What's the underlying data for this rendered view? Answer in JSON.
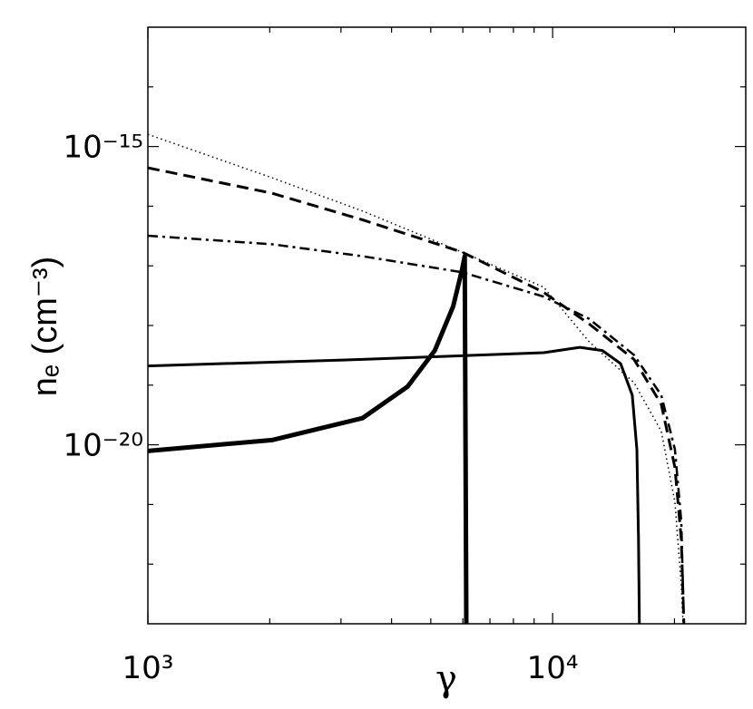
{
  "chart_data": {
    "type": "line",
    "xlabel": "γ",
    "ylabel": "nₑ (cm⁻³)",
    "xscale": "log",
    "yscale": "log",
    "xlim": [
      1000,
      30000
    ],
    "ylim": [
      1e-23,
      1e-13
    ],
    "xticks": [
      {
        "value": 1000,
        "label": "10³"
      },
      {
        "value": 10000,
        "label": "10⁴"
      }
    ],
    "yticks": [
      {
        "value": 1e-20,
        "label": "10⁻²⁰"
      },
      {
        "value": 1e-15,
        "label": "10⁻¹⁵"
      }
    ],
    "xminorticks": [
      2000,
      3000,
      4000,
      5000,
      6000,
      7000,
      8000,
      9000,
      20000
    ],
    "yminorticks": [
      1e-22,
      1e-21,
      1e-19,
      1e-18,
      1e-17,
      1e-16,
      1e-14
    ],
    "series": [
      {
        "color": "#000000",
        "linestyle": "dotted",
        "linewidth": 1.5,
        "x": [
          1000,
          2025,
          3390,
          5975,
          9500,
          12290,
          15890,
          18550,
          20050,
          20790,
          21000
        ],
        "values": [
          1.6e-15,
          3e-16,
          8.3e-17,
          1.7e-17,
          4.4e-18,
          5.4e-19,
          1.1e-19,
          1.7e-20,
          1.1e-21,
          4.5e-23,
          1e-23
        ]
      },
      {
        "color": "#000000",
        "linestyle": "dashed",
        "linewidth": 3,
        "x": [
          1000,
          2025,
          3390,
          5975,
          9500,
          12290,
          15890,
          18550,
          20050,
          20790,
          21100
        ],
        "values": [
          4.4e-16,
          1.65e-16,
          5.9e-17,
          1.7e-17,
          3.6e-18,
          1.07e-18,
          2.7e-19,
          4.8e-20,
          4.2e-21,
          2.6e-22,
          1e-23
        ]
      },
      {
        "color": "#000000",
        "linestyle": "dashdot",
        "linewidth": 2.5,
        "x": [
          1000,
          2025,
          3390,
          5975,
          9500,
          12290,
          15890,
          18550,
          20050,
          20790,
          21100
        ],
        "values": [
          3.2e-17,
          2.3e-17,
          1.45e-17,
          7.8e-18,
          3.05e-18,
          1.3e-18,
          3.2e-19,
          6.8e-20,
          8.4e-21,
          5.2e-22,
          1e-23
        ]
      },
      {
        "color": "#000000",
        "linestyle": "solid",
        "linewidth": 3,
        "x": [
          1000,
          3390,
          9500,
          11670,
          13270,
          14720,
          15730,
          16150,
          16300,
          16380
        ],
        "values": [
          2.1e-19,
          2.7e-19,
          3.5e-19,
          4.3e-19,
          3.8e-19,
          2.3e-19,
          6.8e-20,
          8.4e-21,
          2.6e-22,
          1e-23
        ]
      },
      {
        "color": "#000000",
        "linestyle": "solid",
        "linewidth": 5,
        "x": [
          1000,
          2025,
          3390,
          4385,
          5115,
          5680,
          5975,
          6065,
          6120
        ],
        "values": [
          7.9e-21,
          1.2e-20,
          2.8e-20,
          9.5e-20,
          3.8e-19,
          2.1e-18,
          8.7e-18,
          1.45e-17,
          1e-23
        ]
      }
    ]
  }
}
